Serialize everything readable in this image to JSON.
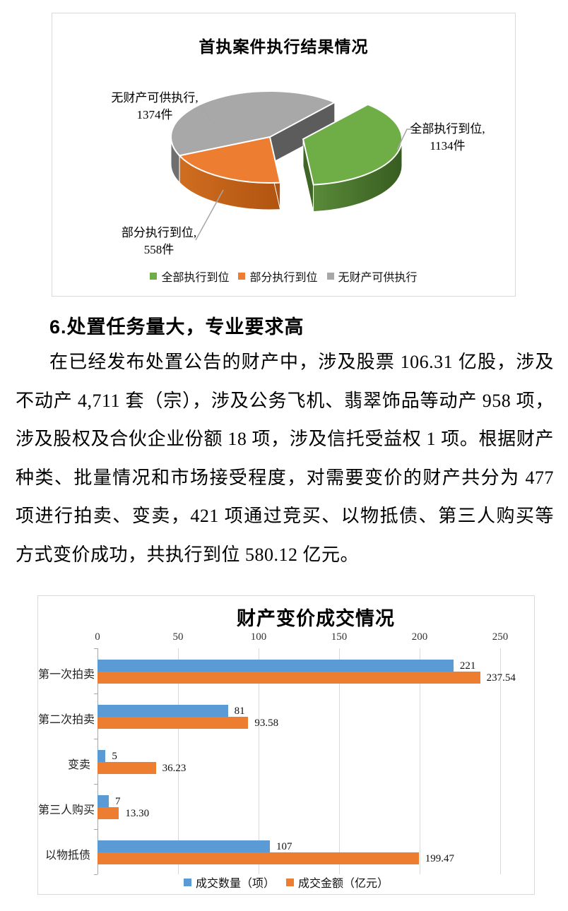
{
  "heading": "6.处置任务量大，专业要求高",
  "paragraph": "在已经发布处置公告的财产中，涉及股票 106.31 亿股，涉及不动产 4,711 套（宗），涉及公务飞机、翡翠饰品等动产 958 项，涉及股权及合伙企业份额 18 项，涉及信托受益权 1 项。根据财产种类、批量情况和市场接受程度，对需要变价的财产共分为 477 项进行拍卖、变卖，421 项通过竞买、以物抵债、第三人购买等方式变价成功，共执行到位 580.12 亿元。",
  "colors": {
    "green": "#6fae47",
    "orange": "#ed7d31",
    "gray": "#a8a8a8",
    "blue": "#5b9bd5",
    "grid": "#d9d9d9",
    "axis": "#a6a6a6",
    "border": "#d9d9d9"
  },
  "pie_labels": {
    "gray_line1": "无财产可供执行,",
    "gray_line2": "1374件",
    "green_line1": "全部执行到位,",
    "green_line2": "1134件",
    "orange_line1": "部分执行到位,",
    "orange_line2": "558件"
  },
  "chart_data": [
    {
      "type": "pie",
      "style": "3d-exploded",
      "title": "首执案件执行结果情况",
      "unit": "件",
      "slices": [
        {
          "label": "全部执行到位",
          "value": 1134,
          "color": "#6fae47",
          "exploded": true
        },
        {
          "label": "部分执行到位",
          "value": 558,
          "color": "#ed7d31",
          "exploded": false
        },
        {
          "label": "无财产可供执行",
          "value": 1374,
          "color": "#a8a8a8",
          "exploded": false
        }
      ],
      "legend": [
        "全部执行到位",
        "部分执行到位",
        "无财产可供执行"
      ],
      "legend_position": "bottom"
    },
    {
      "type": "bar",
      "orientation": "horizontal",
      "title": "财产变价成交情况",
      "categories": [
        "第一次拍卖",
        "第二次拍卖",
        "变卖",
        "第三人购买",
        "以物抵债"
      ],
      "series": [
        {
          "name": "成交数量（项）",
          "color": "#5b9bd5",
          "values": [
            221,
            81,
            5,
            7,
            107
          ],
          "labels": [
            "221",
            "81",
            "5",
            "7",
            "107"
          ]
        },
        {
          "name": "成交金额（亿元）",
          "color": "#ed7d31",
          "values": [
            237.54,
            93.58,
            36.23,
            13.3,
            199.47
          ],
          "labels": [
            "237.54",
            "93.58",
            "36.23",
            "13.30",
            "199.47"
          ]
        }
      ],
      "xlim": [
        0,
        250
      ],
      "ticks": [
        0,
        50,
        100,
        150,
        200,
        250
      ],
      "grid": true,
      "legend_position": "bottom"
    }
  ]
}
